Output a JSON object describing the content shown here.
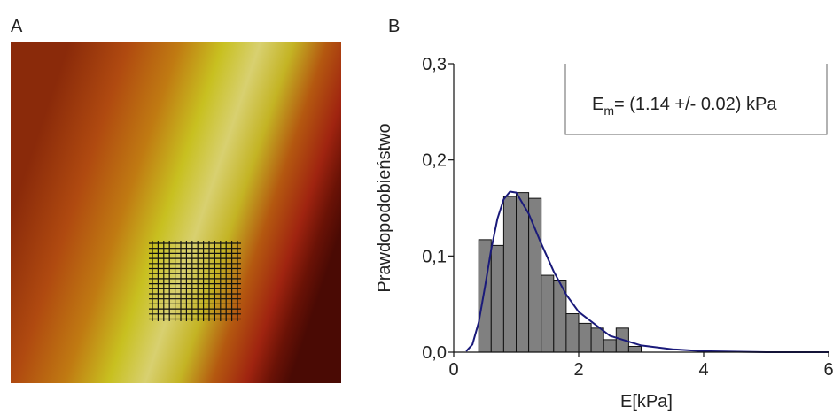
{
  "panel_labels": [
    "A",
    "B"
  ],
  "chart_data": {
    "type": "histogram",
    "y_label": "Prawdopodobieństwo",
    "x_label": "E[kPa]",
    "annotation": {
      "main": "E",
      "sub": "m",
      "rest": "= (1.14 +/- 0.02) kPa"
    },
    "bins": [
      0.4,
      0.6,
      0.8,
      1.0,
      1.2,
      1.4,
      1.6,
      1.8,
      2.0,
      2.2,
      2.4,
      2.6,
      2.8,
      3.0
    ],
    "values": [
      0.117,
      0.111,
      0.162,
      0.166,
      0.16,
      0.08,
      0.075,
      0.04,
      0.03,
      0.025,
      0.013,
      0.025,
      0.006
    ],
    "color": "#808080",
    "fit": {
      "color": "#1a1a7a",
      "x": [
        0.2,
        0.3,
        0.4,
        0.5,
        0.6,
        0.7,
        0.8,
        0.9,
        1.0,
        1.2,
        1.4,
        1.6,
        1.8,
        2.0,
        2.5,
        3.0,
        3.5,
        4.0,
        5.0,
        6.0
      ],
      "values": [
        0.001,
        0.008,
        0.031,
        0.068,
        0.107,
        0.139,
        0.159,
        0.167,
        0.166,
        0.144,
        0.113,
        0.084,
        0.06,
        0.042,
        0.017,
        0.007,
        0.003,
        0.001,
        0.0,
        0.0
      ]
    },
    "xlim": [
      0,
      6
    ],
    "xticks": [
      0,
      2,
      4,
      6
    ],
    "ylim": [
      0,
      0.3
    ],
    "yticks": [
      {
        "value": 0,
        "label": "0,0"
      },
      {
        "value": 0.1,
        "label": "0,1"
      },
      {
        "value": 0.2,
        "label": "0,2"
      },
      {
        "value": 0.3,
        "label": "0,3"
      }
    ]
  }
}
